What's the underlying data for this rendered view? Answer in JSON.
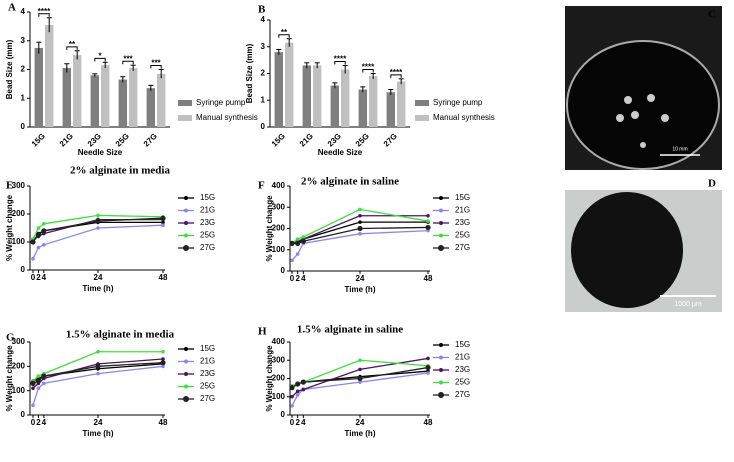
{
  "chart_data": [
    {
      "type": "bar",
      "label": "A",
      "xlabel": "Needle Size",
      "ylabel": "Bead Size  (mm)",
      "categories": [
        "15G",
        "21G",
        "23G",
        "25G",
        "27G"
      ],
      "series": [
        {
          "name": "Syringe pump",
          "color": "#7f7f7f",
          "values": [
            2.75,
            2.05,
            1.8,
            1.65,
            1.35
          ],
          "errors": [
            0.2,
            0.15,
            0.05,
            0.1,
            0.1
          ]
        },
        {
          "name": "Manual synthesis",
          "color": "#c0c0c0",
          "values": [
            3.55,
            2.5,
            2.15,
            2.05,
            1.85
          ],
          "errors": [
            0.25,
            0.15,
            0.1,
            0.1,
            0.15
          ]
        }
      ],
      "significance": [
        "****",
        "**",
        "*",
        "***",
        "***"
      ],
      "ylim": [
        0,
        4
      ],
      "yticks": [
        0,
        1,
        2,
        3,
        4
      ]
    },
    {
      "type": "bar",
      "label": "B",
      "xlabel": "Needle Size",
      "ylabel": "Bead Size  (mm)",
      "categories": [
        "15G",
        "21G",
        "23G",
        "25G",
        "27G"
      ],
      "series": [
        {
          "name": "Syringe pump",
          "color": "#7f7f7f",
          "values": [
            2.8,
            2.3,
            1.55,
            1.4,
            1.3
          ],
          "errors": [
            0.1,
            0.1,
            0.1,
            0.1,
            0.1
          ]
        },
        {
          "name": "Manual synthesis",
          "color": "#c0c0c0",
          "values": [
            3.15,
            2.3,
            2.15,
            1.9,
            1.7
          ],
          "errors": [
            0.15,
            0.1,
            0.15,
            0.1,
            0.1
          ]
        }
      ],
      "significance": [
        "**",
        null,
        "****",
        "****",
        "****"
      ],
      "ylim": [
        0,
        4
      ],
      "yticks": [
        0,
        1,
        2,
        3,
        4
      ]
    },
    {
      "type": "line",
      "label": "E",
      "title": "2% alginate in media",
      "xlabel": "Time (h)",
      "ylabel": "% Weight change",
      "x": [
        0,
        2,
        4,
        24,
        48
      ],
      "xlim": [
        0,
        48
      ],
      "xticks": [
        0,
        2,
        4,
        24,
        48
      ],
      "ylim": [
        0,
        300
      ],
      "yticks": [
        0,
        100,
        200,
        300
      ],
      "series": [
        {
          "name": "15G",
          "color": "#000000",
          "values": [
            100,
            130,
            140,
            170,
            170
          ]
        },
        {
          "name": "21G",
          "color": "#8a86ee",
          "values": [
            40,
            80,
            90,
            150,
            160
          ]
        },
        {
          "name": "23G",
          "color": "#4b1460",
          "values": [
            110,
            120,
            130,
            180,
            180
          ]
        },
        {
          "name": "25G",
          "color": "#3ee03e",
          "values": [
            110,
            150,
            165,
            195,
            190
          ]
        },
        {
          "name": "27G",
          "color": "#222222",
          "values": [
            100,
            125,
            140,
            175,
            185
          ]
        }
      ]
    },
    {
      "type": "line",
      "label": "F",
      "title": "2% alginate in saline",
      "xlabel": "Time (h)",
      "ylabel": "% Weight change",
      "x": [
        0,
        2,
        4,
        24,
        48
      ],
      "xlim": [
        0,
        48
      ],
      "xticks": [
        0,
        2,
        4,
        24,
        48
      ],
      "ylim": [
        0,
        400
      ],
      "yticks": [
        0,
        100,
        200,
        300,
        400
      ],
      "series": [
        {
          "name": "15G",
          "color": "#000000",
          "values": [
            130,
            130,
            150,
            230,
            230
          ]
        },
        {
          "name": "21G",
          "color": "#8a86ee",
          "values": [
            50,
            80,
            130,
            175,
            190
          ]
        },
        {
          "name": "23G",
          "color": "#4b1460",
          "values": [
            130,
            140,
            150,
            260,
            260
          ]
        },
        {
          "name": "25G",
          "color": "#3ee03e",
          "values": [
            130,
            150,
            160,
            290,
            235
          ]
        },
        {
          "name": "27G",
          "color": "#222222",
          "values": [
            130,
            130,
            140,
            200,
            205
          ]
        }
      ]
    },
    {
      "type": "line",
      "label": "G",
      "title": "1.5% alginate in media",
      "xlabel": "Time (h)",
      "ylabel": "% Weight change",
      "x": [
        0,
        2,
        4,
        24,
        48
      ],
      "xlim": [
        0,
        48
      ],
      "xticks": [
        0,
        2,
        4,
        24,
        48
      ],
      "ylim": [
        0,
        300
      ],
      "yticks": [
        0,
        100,
        200,
        300
      ],
      "series": [
        {
          "name": "15G",
          "color": "#000000",
          "values": [
            140,
            150,
            160,
            190,
            210
          ]
        },
        {
          "name": "21G",
          "color": "#8a86ee",
          "values": [
            40,
            110,
            130,
            170,
            200
          ]
        },
        {
          "name": "23G",
          "color": "#4b1460",
          "values": [
            110,
            130,
            150,
            210,
            230
          ]
        },
        {
          "name": "25G",
          "color": "#3ee03e",
          "values": [
            140,
            160,
            170,
            260,
            260
          ]
        },
        {
          "name": "27G",
          "color": "#222222",
          "values": [
            130,
            140,
            160,
            200,
            215
          ]
        }
      ]
    },
    {
      "type": "line",
      "label": "H",
      "title": "1.5% alginate in saline",
      "xlabel": "Time (h)",
      "ylabel": "% Weight change",
      "x": [
        0,
        2,
        4,
        24,
        48
      ],
      "xlim": [
        0,
        48
      ],
      "xticks": [
        0,
        2,
        4,
        24,
        48
      ],
      "ylim": [
        0,
        400
      ],
      "yticks": [
        0,
        100,
        200,
        300,
        400
      ],
      "series": [
        {
          "name": "15G",
          "color": "#000000",
          "values": [
            150,
            170,
            180,
            210,
            240
          ]
        },
        {
          "name": "21G",
          "color": "#8a86ee",
          "values": [
            50,
            110,
            140,
            180,
            230
          ]
        },
        {
          "name": "23G",
          "color": "#4b1460",
          "values": [
            100,
            130,
            140,
            250,
            310
          ]
        },
        {
          "name": "25G",
          "color": "#3ee03e",
          "values": [
            160,
            170,
            180,
            300,
            270
          ]
        },
        {
          "name": "27G",
          "color": "#222222",
          "values": [
            150,
            170,
            180,
            200,
            260
          ]
        }
      ]
    }
  ],
  "images": [
    {
      "label": "C",
      "scale_label": "10 mm"
    },
    {
      "label": "D",
      "scale_label": "1000 μm"
    }
  ]
}
